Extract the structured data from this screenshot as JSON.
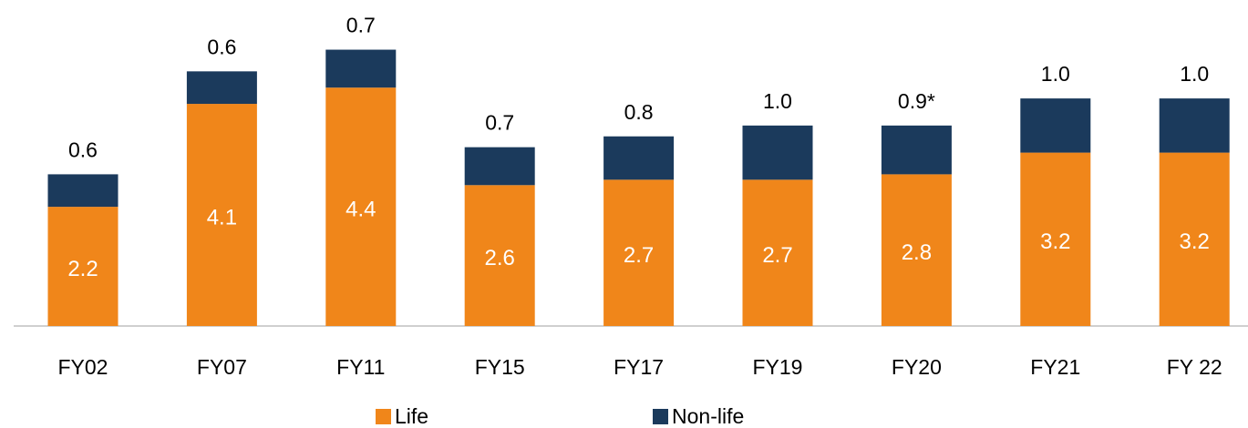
{
  "chart_data": {
    "type": "stacked_bar",
    "categories": [
      "FY02",
      "FY07",
      "FY11",
      "FY15",
      "FY17",
      "FY19",
      "FY20",
      "FY21",
      "FY 22"
    ],
    "series": [
      {
        "name": "Life",
        "color": "#f0861a",
        "values": [
          2.2,
          4.1,
          4.4,
          2.6,
          2.7,
          2.7,
          2.8,
          3.2,
          3.2
        ]
      },
      {
        "name": "Non-life",
        "color": "#1b3a5c",
        "values": [
          0.6,
          0.6,
          0.7,
          0.7,
          0.8,
          1.0,
          0.9,
          1.0,
          1.0
        ],
        "value_labels": [
          "0.6",
          "0.6",
          "0.7",
          "0.7",
          "0.8",
          "1.0",
          "0.9*",
          "1.0",
          "1.0"
        ]
      }
    ],
    "legend": "bottom"
  }
}
